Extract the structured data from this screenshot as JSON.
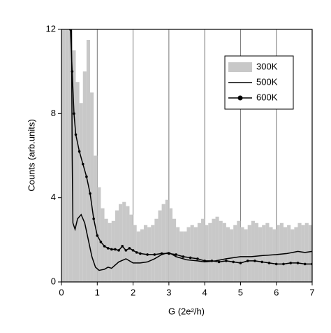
{
  "chart_data": {
    "type": "mixed",
    "xlabel": "G (2e²/h)",
    "ylabel": "Counts (arb.units)",
    "xlim": [
      0,
      7
    ],
    "ylim": [
      0,
      12
    ],
    "xticks": [
      0,
      1,
      2,
      3,
      4,
      5,
      6,
      7
    ],
    "yticks": [
      0,
      4,
      8,
      12
    ],
    "grid": "x",
    "legend": "upper right",
    "series": [
      {
        "name": "300K",
        "type": "histogram",
        "color": "#c8c8c8",
        "bins": [
          0,
          0.1,
          0.2,
          0.3,
          0.4,
          0.5,
          0.6,
          0.7,
          0.8,
          0.9,
          1,
          1.1,
          1.2,
          1.3,
          1.4,
          1.5,
          1.6,
          1.7,
          1.8,
          1.9,
          2,
          2.1,
          2.2,
          2.3,
          2.4,
          2.5,
          2.6,
          2.7,
          2.8,
          2.9,
          3,
          3.1,
          3.2,
          3.3,
          3.4,
          3.5,
          3.6,
          3.7,
          3.8,
          3.9,
          4,
          4.1,
          4.2,
          4.3,
          4.4,
          4.5,
          4.6,
          4.7,
          4.8,
          4.9,
          5,
          5.1,
          5.2,
          5.3,
          5.4,
          5.5,
          5.6,
          5.7,
          5.8,
          5.9,
          6,
          6.1,
          6.2,
          6.3,
          6.4,
          6.5,
          6.6,
          6.7,
          6.8,
          6.9,
          7
        ],
        "values": [
          12,
          12,
          12,
          11,
          9.5,
          8.5,
          10,
          11.5,
          9,
          6,
          4.5,
          3.5,
          3,
          2.8,
          2.9,
          3.4,
          3.7,
          3.8,
          3.6,
          3.2,
          2.7,
          2.4,
          2.5,
          2.7,
          2.6,
          2.7,
          3,
          3.4,
          3.7,
          3.9,
          3.5,
          3,
          2.6,
          2.4,
          2.4,
          2.6,
          2.7,
          2.6,
          2.8,
          3,
          2.7,
          2.8,
          3,
          3.1,
          2.9,
          2.8,
          2.6,
          2.5,
          2.7,
          2.9,
          2.6,
          2.5,
          2.7,
          2.9,
          2.8,
          2.6,
          2.7,
          2.8,
          2.6,
          2.5,
          2.7,
          2.8,
          2.6,
          2.7,
          2.5,
          2.6,
          2.8,
          2.7,
          2.8,
          2.7
        ]
      },
      {
        "name": "500K",
        "type": "line",
        "color": "#000000",
        "x": [
          0.28,
          0.3,
          0.32,
          0.38,
          0.45,
          0.55,
          0.65,
          0.75,
          0.85,
          0.95,
          1.05,
          1.2,
          1.3,
          1.4,
          1.6,
          1.8,
          2,
          2.2,
          2.4,
          2.6,
          2.8,
          3,
          3.2,
          3.5,
          3.8,
          4,
          4.3,
          4.6,
          5,
          5.3,
          5.6,
          6,
          6.3,
          6.6,
          6.8,
          7
        ],
        "values": [
          12,
          6,
          2.8,
          2.5,
          3,
          3.2,
          2.8,
          2,
          1.2,
          0.7,
          0.55,
          0.6,
          0.7,
          0.65,
          0.95,
          1.1,
          0.9,
          0.9,
          0.95,
          1.1,
          1.3,
          1.4,
          1.2,
          1.05,
          1,
          0.95,
          1,
          1.1,
          1.2,
          1.2,
          1.25,
          1.3,
          1.35,
          1.45,
          1.4,
          1.45
        ]
      },
      {
        "name": "600K",
        "type": "line",
        "marker": "circle",
        "color": "#000000",
        "x": [
          0.25,
          0.3,
          0.35,
          0.4,
          0.5,
          0.6,
          0.7,
          0.8,
          0.9,
          1,
          1.1,
          1.2,
          1.3,
          1.4,
          1.5,
          1.6,
          1.7,
          1.8,
          1.9,
          2,
          2.1,
          2.2,
          2.4,
          2.6,
          2.8,
          3,
          3.2,
          3.4,
          3.6,
          3.8,
          4,
          4.2,
          4.4,
          4.6,
          4.8,
          5,
          5.2,
          5.4,
          5.6,
          5.8,
          6,
          6.2,
          6.4,
          6.6,
          6.8,
          7
        ],
        "values": [
          12,
          10,
          8,
          7,
          6.2,
          5.6,
          5,
          4.2,
          3,
          2.2,
          1.9,
          1.7,
          1.6,
          1.55,
          1.55,
          1.5,
          1.7,
          1.5,
          1.6,
          1.5,
          1.4,
          1.35,
          1.3,
          1.3,
          1.35,
          1.35,
          1.3,
          1.2,
          1.15,
          1.1,
          1,
          1,
          0.95,
          1,
          0.95,
          0.9,
          1,
          1,
          0.95,
          0.9,
          0.85,
          0.85,
          0.9,
          0.9,
          0.85,
          0.85
        ]
      }
    ]
  }
}
